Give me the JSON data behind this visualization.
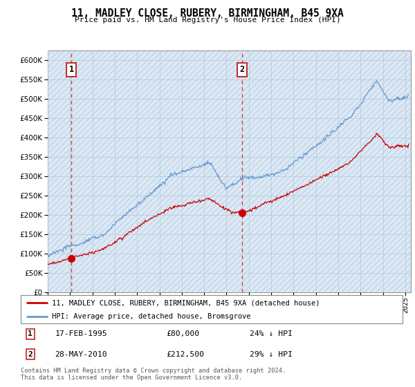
{
  "title": "11, MADLEY CLOSE, RUBERY, BIRMINGHAM, B45 9XA",
  "subtitle": "Price paid vs. HM Land Registry's House Price Index (HPI)",
  "background_color": "#dce9f5",
  "hatch_color": "#c2d4e8",
  "red_line_color": "#cc0000",
  "blue_line_color": "#6699cc",
  "dashed_line_color": "#cc4444",
  "grid_color": "#b8cce0",
  "transaction1_date": 1995.12,
  "transaction1_price": 80000,
  "transaction2_date": 2010.38,
  "transaction2_price": 212500,
  "legend_line1": "11, MADLEY CLOSE, RUBERY, BIRMINGHAM, B45 9XA (detached house)",
  "legend_line2": "HPI: Average price, detached house, Bromsgrove",
  "note1_label": "1",
  "note1_date": "17-FEB-1995",
  "note1_price": "£80,000",
  "note1_hpi": "24% ↓ HPI",
  "note2_label": "2",
  "note2_date": "28-MAY-2010",
  "note2_price": "£212,500",
  "note2_hpi": "29% ↓ HPI",
  "footer": "Contains HM Land Registry data © Crown copyright and database right 2024.\nThis data is licensed under the Open Government Licence v3.0.",
  "ylim": [
    0,
    625000
  ],
  "xlim_start": 1993.0,
  "xlim_end": 2025.5,
  "yticks": [
    0,
    50000,
    100000,
    150000,
    200000,
    250000,
    300000,
    350000,
    400000,
    450000,
    500000,
    550000,
    600000
  ]
}
